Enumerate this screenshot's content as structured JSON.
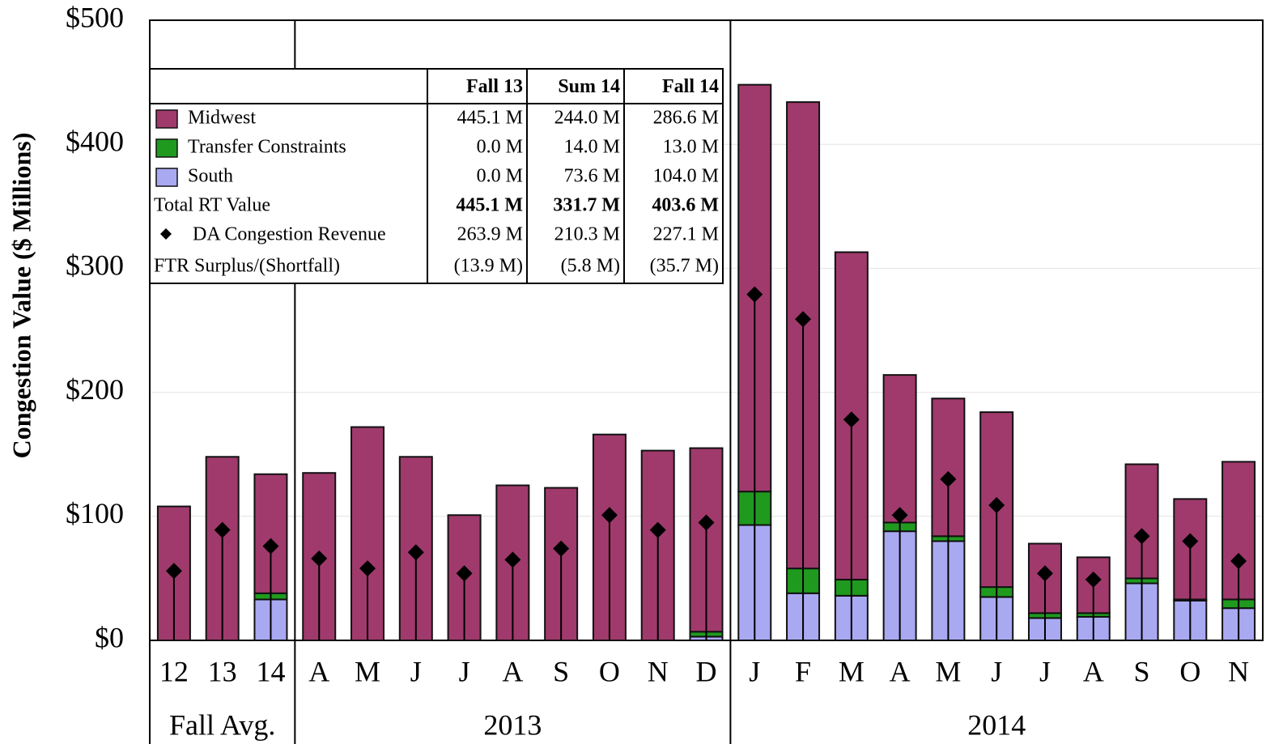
{
  "chart_data": {
    "type": "stacked_bar",
    "y_label": "Congestion Value ($ Millions)",
    "categories": [
      "12",
      "13",
      "14",
      "A",
      "M",
      "J",
      "J",
      "A",
      "S",
      "O",
      "N",
      "D",
      "J",
      "F",
      "M",
      "A",
      "M",
      "J",
      "J",
      "A",
      "S",
      "O",
      "N"
    ],
    "groups": [
      {
        "label": "Fall Avg.",
        "span": 3
      },
      {
        "label": "2013",
        "span": 9
      },
      {
        "label": "2014",
        "span": 11
      }
    ],
    "ylim": [
      0,
      500
    ],
    "yticks": [
      {
        "value": 0,
        "label": "$0"
      },
      {
        "value": 100,
        "label": "$100"
      },
      {
        "value": 200,
        "label": "$200"
      },
      {
        "value": 300,
        "label": "$300"
      },
      {
        "value": 400,
        "label": "$400"
      },
      {
        "value": 500,
        "label": "$500"
      }
    ],
    "grid": true,
    "series": [
      {
        "name": "South",
        "color": "#a9a9f2",
        "values": [
          0,
          0,
          33,
          0,
          0,
          0,
          0,
          0,
          0,
          0,
          0,
          3,
          93,
          38,
          36,
          88,
          80,
          35,
          18,
          19,
          46,
          32,
          26
        ],
        "summary": [
          "0.0 M",
          "73.6 M",
          "104.0 M"
        ]
      },
      {
        "name": "Transfer Constraints",
        "color": "#1f9a1f",
        "values": [
          0,
          0,
          5,
          0,
          0,
          0,
          0,
          0,
          0,
          0,
          0,
          4,
          27,
          20,
          13,
          7,
          4,
          8,
          4,
          3,
          4,
          1,
          7
        ],
        "summary": [
          "0.0 M",
          "14.0 M",
          "13.0 M"
        ]
      },
      {
        "name": "Midwest",
        "color": "#a03a6c",
        "values": [
          108,
          148,
          96,
          135,
          172,
          148,
          101,
          125,
          123,
          166,
          153,
          148,
          328,
          376,
          264,
          119,
          111,
          141,
          56,
          45,
          92,
          81,
          111
        ],
        "summary": [
          "445.1 M",
          "244.0 M",
          "286.6 M"
        ]
      }
    ],
    "markers": {
      "name": "DA Congestion Revenue",
      "color": "#000000",
      "values": [
        56,
        89,
        76,
        66,
        58,
        71,
        54,
        65,
        74,
        101,
        89,
        95,
        279,
        259,
        178,
        101,
        130,
        109,
        54,
        49,
        84,
        80,
        64
      ],
      "summary": [
        "263.9 M",
        "210.3 M",
        "227.1 M"
      ]
    },
    "table": {
      "columns": [
        "Fall 13",
        "Sum 14",
        "Fall 14"
      ],
      "rows": [
        {
          "label": "Total RT Value",
          "cells": [
            "445.1 M",
            "331.7 M",
            "403.6 M"
          ],
          "bold": true
        },
        {
          "label": "FTR Surplus/(Shortfall)",
          "cells": [
            "(13.9 M)",
            "(5.8 M)",
            "(35.7 M)"
          ]
        }
      ]
    }
  }
}
